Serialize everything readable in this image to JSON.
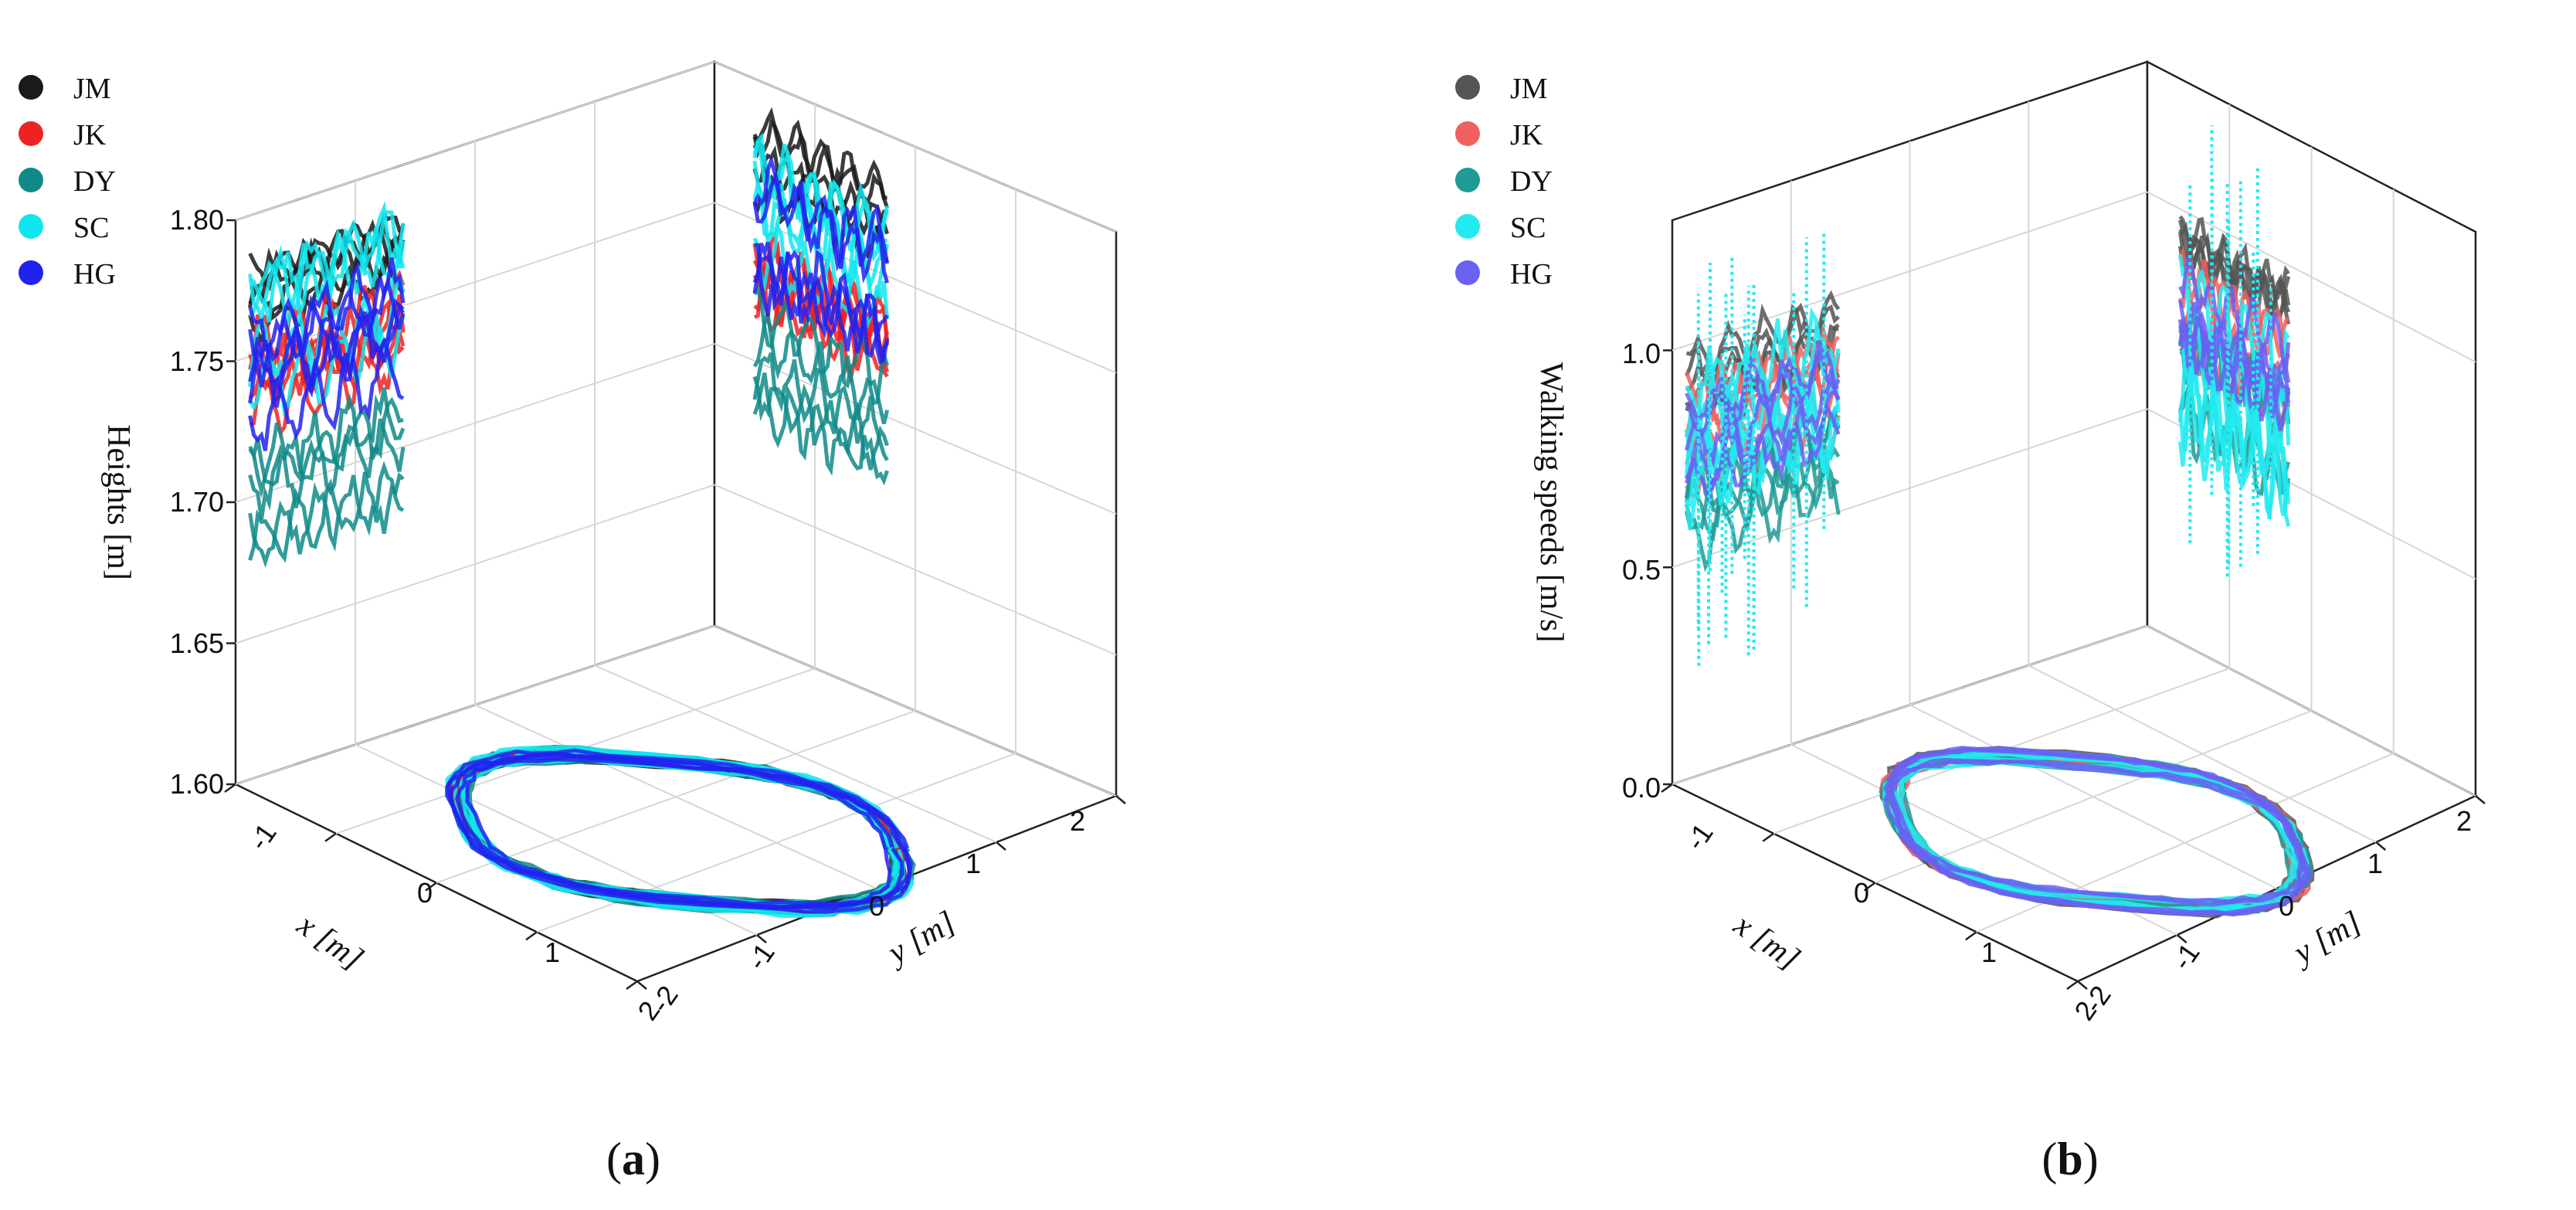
{
  "chart_data": [
    {
      "panel": "a",
      "caption_open": "(",
      "caption_letter": "a",
      "caption_close": ")",
      "type": "scatter",
      "title": "",
      "xlabel": "x [m]",
      "ylabel": "y [m]",
      "zlabel": "Heights [m]",
      "xlim": [
        -1.2,
        2
      ],
      "ylim": [
        -2,
        2.3
      ],
      "zlim": [
        1.6,
        1.8
      ],
      "x_ticks": [
        "-1",
        "0",
        "1",
        "2"
      ],
      "y_ticks": [
        "-2",
        "-1",
        "0",
        "1",
        "2"
      ],
      "z_ticks": [
        "1.60",
        "1.65",
        "1.70",
        "1.75",
        "1.80"
      ],
      "legend": [
        {
          "name": "JM",
          "color": "#1a1a1a"
        },
        {
          "name": "JK",
          "color": "#ee2222"
        },
        {
          "name": "DY",
          "color": "#0f8a88"
        },
        {
          "name": "SC",
          "color": "#11e6ee"
        },
        {
          "name": "HG",
          "color": "#2222ee"
        }
      ],
      "series": [
        {
          "name": "JM",
          "z_mean": 1.772,
          "z_spread": 0.012
        },
        {
          "name": "JK",
          "z_mean": 1.735,
          "z_spread": 0.02
        },
        {
          "name": "DY",
          "z_mean": 1.7,
          "z_spread": 0.018
        },
        {
          "name": "SC",
          "z_mean": 1.755,
          "z_spread": 0.02
        },
        {
          "name": "HG",
          "z_mean": 1.745,
          "z_spread": 0.02
        }
      ]
    },
    {
      "panel": "b",
      "caption_open": "(",
      "caption_letter": "b",
      "caption_close": ")",
      "type": "scatter",
      "title": "",
      "xlabel": "x [m]",
      "ylabel": "y [m]",
      "zlabel": "Walking speeds [m/s]",
      "xlim": [
        -1.2,
        2
      ],
      "ylim": [
        -2,
        2.3
      ],
      "zlim": [
        0,
        1.3
      ],
      "x_ticks": [
        "-1",
        "0",
        "1",
        "2"
      ],
      "y_ticks": [
        "-2",
        "-1",
        "0",
        "1",
        "2"
      ],
      "z_ticks": [
        "0.0",
        "0.5",
        "1.0"
      ],
      "legend": [
        {
          "name": "JM",
          "color": "#555555"
        },
        {
          "name": "JK",
          "color": "#f06060"
        },
        {
          "name": "DY",
          "color": "#1f9a95"
        },
        {
          "name": "SC",
          "color": "#22eaf0"
        },
        {
          "name": "HG",
          "color": "#6a60f2"
        }
      ],
      "series": [
        {
          "name": "JM",
          "z_mean": 0.9,
          "z_spread": 0.08
        },
        {
          "name": "JK",
          "z_mean": 0.78,
          "z_spread": 0.1
        },
        {
          "name": "DY",
          "z_mean": 0.6,
          "z_spread": 0.12
        },
        {
          "name": "SC",
          "z_mean": 0.72,
          "z_spread": 0.2
        },
        {
          "name": "HG",
          "z_mean": 0.75,
          "z_spread": 0.1
        }
      ]
    }
  ]
}
